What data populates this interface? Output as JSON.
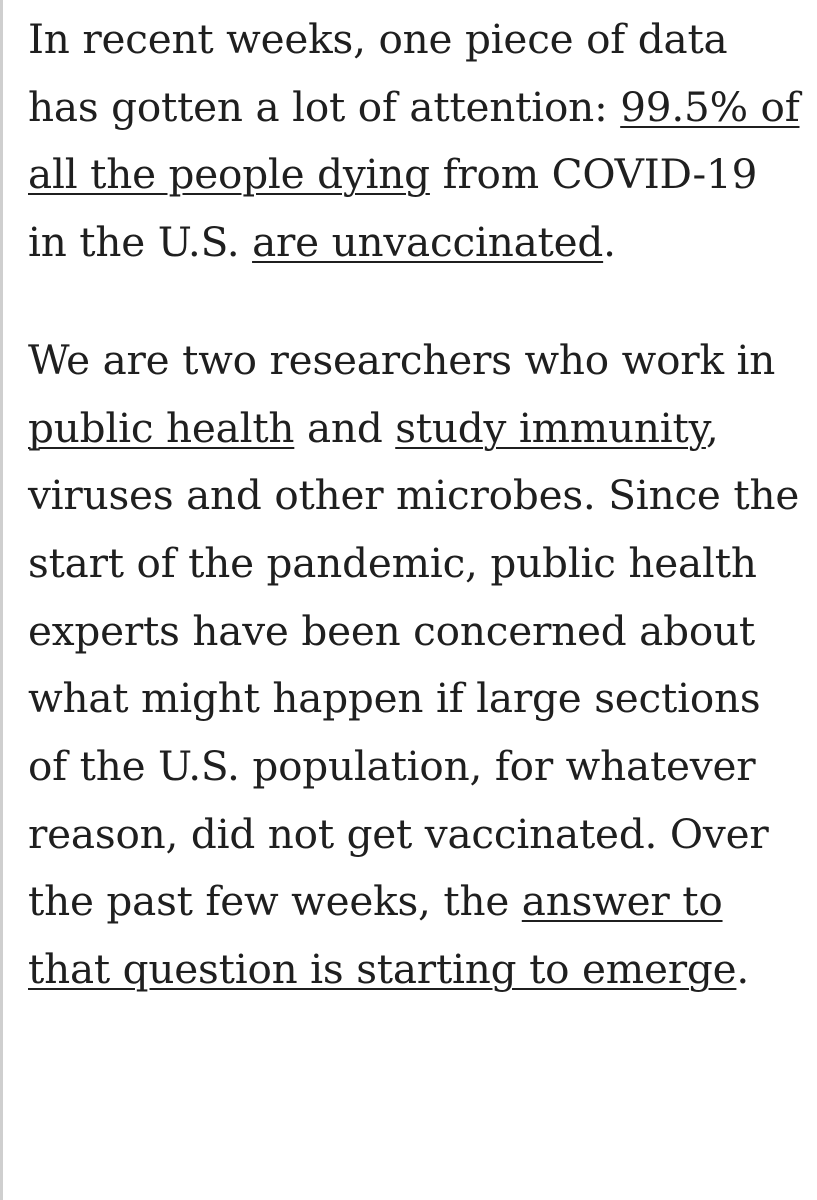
{
  "article": {
    "paragraph_1": {
      "text_1": "In recent weeks, one piece of data has gotten a lot of attention: ",
      "link_1": "99.5% of all the people dying",
      "text_2": " from COVID-19 in the U.S. ",
      "link_2": "are unvaccinated",
      "text_3": "."
    },
    "paragraph_2": {
      "text_1": "We are two researchers who work in ",
      "link_1": "public health",
      "text_2": " and ",
      "link_2": "study immunity",
      "text_3": ", viruses and other microbes. Since the start of the pandemic, public health experts have been concerned about what might happen if large sections of the U.S. population, for whatever reason, did not get vaccinated. Over the past few weeks, the ",
      "link_3": "answer to that question is starting to emerge",
      "text_4": "."
    }
  }
}
